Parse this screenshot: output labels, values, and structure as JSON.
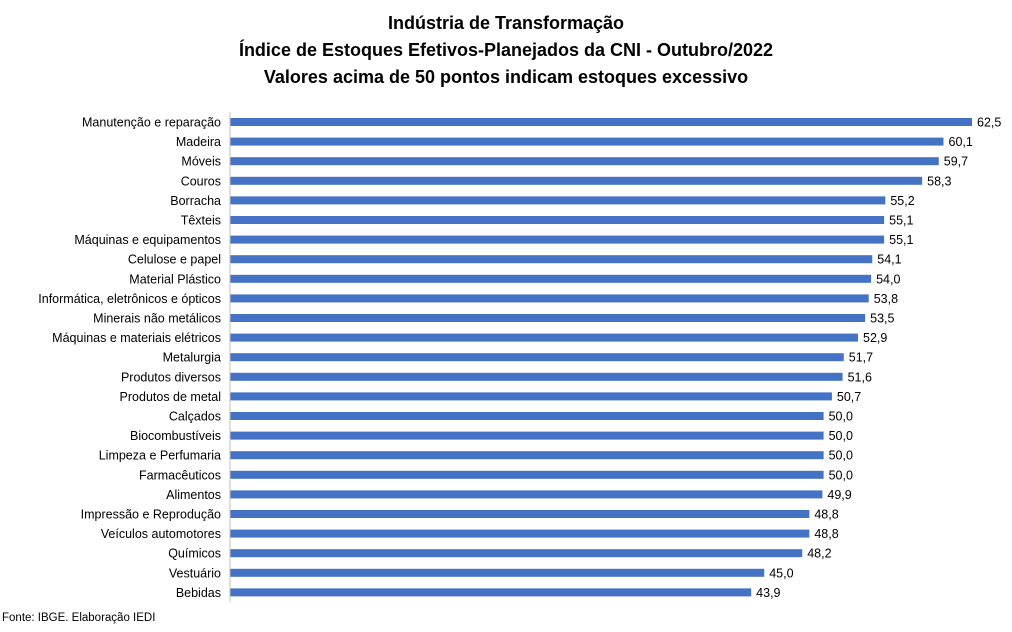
{
  "chart_data": {
    "type": "bar",
    "orientation": "horizontal",
    "title": [
      "Indústria de Transformação",
      "Índice de Estoques Efetivos-Planejados da CNI - Outubro/2022",
      "Valores acima de 50 pontos indicam estoques excessivo"
    ],
    "categories": [
      "Manutenção e reparação",
      "Madeira",
      "Móveis",
      "Couros",
      "Borracha",
      "Têxteis",
      "Máquinas e equipamentos",
      "Celulose e papel",
      "Material Plástico",
      "Informática, eletrônicos e ópticos",
      "Minerais não metálicos",
      "Máquinas e materiais elétricos",
      "Metalurgia",
      "Produtos diversos",
      "Produtos de metal",
      "Calçados",
      "Biocombustíveis",
      "Limpeza e Perfumaria",
      "Farmacêuticos",
      "Alimentos",
      "Impressão e Reprodução",
      "Veículos automotores",
      "Químicos",
      "Vestuário",
      "Bebidas"
    ],
    "values": [
      62.5,
      60.1,
      59.7,
      58.3,
      55.2,
      55.1,
      55.1,
      54.1,
      54.0,
      53.8,
      53.5,
      52.9,
      51.7,
      51.6,
      50.7,
      50.0,
      50.0,
      50.0,
      50.0,
      49.9,
      48.8,
      48.8,
      48.2,
      45.0,
      43.9
    ],
    "data_labels": [
      "62,5",
      "60,1",
      "59,7",
      "58,3",
      "55,2",
      "55,1",
      "55,1",
      "54,1",
      "54,0",
      "53,8",
      "53,5",
      "52,9",
      "51,7",
      "51,6",
      "50,7",
      "50,0",
      "50,0",
      "50,0",
      "50,0",
      "49,9",
      "48,8",
      "48,8",
      "48,2",
      "45,0",
      "43,9"
    ],
    "bar_color": "#4472c4",
    "grid": false,
    "legend": "none"
  },
  "source_note": "Fonte: IBGE. Elaboração IEDI"
}
